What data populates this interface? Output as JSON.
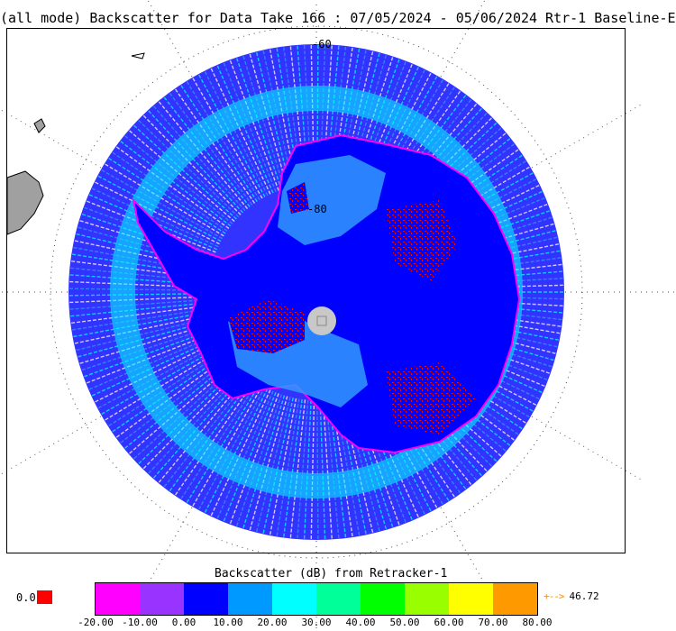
{
  "title": "(all mode) Backscatter for Data Take 166 : 07/05/2024 - 05/06/2024 Rtr-1 Baseline-E",
  "map": {
    "lat_labels": [
      "-60",
      "-80"
    ],
    "colors": {
      "ocean_light": "#3399ff",
      "ocean_cyan": "#00ffff",
      "ocean_dark": "#3333ff",
      "ice_blue": "#0000ff",
      "ice_light": "#3399ff",
      "rough_red": "#ff0000",
      "coast_magenta": "#ff00ff",
      "pole_hole": "#c8c8c8",
      "land": "#a0a0a0"
    }
  },
  "colorbar": {
    "title": "Backscatter (dB) from Retracker-1",
    "colors": [
      "#ff00ff",
      "#9933ff",
      "#0000ff",
      "#0099ff",
      "#00ffff",
      "#00ff99",
      "#00ff00",
      "#99ff00",
      "#ffff00",
      "#ff9900"
    ],
    "ticks": [
      "-20.00",
      "-10.00",
      "0.00",
      "10.00",
      "20.00",
      "30.00",
      "40.00",
      "50.00",
      "60.00",
      "70.00",
      "80.00"
    ],
    "under_value": "0.0",
    "under_color": "#ff0000",
    "over_arrow": "+-->",
    "over_value": "46.72"
  }
}
